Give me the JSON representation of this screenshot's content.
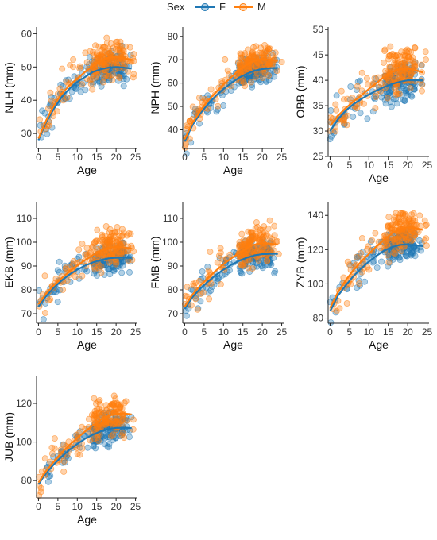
{
  "legend": {
    "title": "Sex",
    "items": [
      {
        "label": "F",
        "color": "#1f77b4"
      },
      {
        "label": "M",
        "color": "#ff7f0e"
      }
    ],
    "placement": "top-center"
  },
  "chart_data": [
    {
      "type": "scatter",
      "title": "",
      "xlabel": "Age",
      "ylabel": "NLH (mm)",
      "xlim": [
        -0.5,
        25.5
      ],
      "xticks": [
        0,
        5,
        10,
        15,
        20,
        25
      ],
      "ylim": [
        25.5,
        62
      ],
      "yticks": [
        30,
        40,
        50,
        60
      ],
      "grid": false,
      "series": [
        {
          "name": "F",
          "color": "#1f77b4",
          "trend": {
            "x": [
              0,
              2,
              4,
              6,
              8,
              10,
              12,
              14,
              16,
              18,
              20,
              22,
              24
            ],
            "y": [
              28,
              33.5,
              37.5,
              41,
              43.5,
              45.5,
              47,
              48.5,
              49.3,
              49.8,
              50,
              49.8,
              49.5
            ]
          },
          "scatter": {
            "x_range": [
              0,
              24
            ],
            "count": 170,
            "seed": 11,
            "noise": 2.4
          }
        },
        {
          "name": "M",
          "color": "#ff7f0e",
          "trend": {
            "x": [
              0,
              2,
              4,
              6,
              8,
              10,
              12,
              14,
              16,
              18,
              20,
              22,
              24
            ],
            "y": [
              28.5,
              34,
              38.5,
              42,
              44.5,
              46.5,
              48.5,
              50.3,
              51.8,
              52.8,
              53,
              52.6,
              52
            ]
          },
          "scatter": {
            "x_range": [
              0,
              25
            ],
            "count": 180,
            "seed": 12,
            "noise": 2.8
          }
        }
      ]
    },
    {
      "type": "scatter",
      "title": "",
      "xlabel": "Age",
      "ylabel": "NPH (mm)",
      "xlim": [
        -0.5,
        25.5
      ],
      "xticks": [
        0,
        5,
        10,
        15,
        20,
        25
      ],
      "ylim": [
        32,
        84
      ],
      "yticks": [
        40,
        50,
        60,
        70,
        80
      ],
      "grid": false,
      "series": [
        {
          "name": "F",
          "color": "#1f77b4",
          "trend": {
            "x": [
              0,
              2,
              4,
              6,
              8,
              10,
              12,
              14,
              16,
              18,
              20,
              22,
              24
            ],
            "y": [
              35,
              42,
              47,
              51,
              54.5,
              57.5,
              60,
              62.3,
              64,
              65.3,
              66,
              66.4,
              66.5
            ]
          },
          "scatter": {
            "x_range": [
              0,
              24
            ],
            "count": 170,
            "seed": 21,
            "noise": 3.2
          }
        },
        {
          "name": "M",
          "color": "#ff7f0e",
          "trend": {
            "x": [
              0,
              2,
              4,
              6,
              8,
              10,
              12,
              14,
              16,
              18,
              20,
              22,
              24
            ],
            "y": [
              36,
              43,
              48,
              52.5,
              56,
              59.5,
              62.5,
              65.5,
              68,
              69.6,
              70.2,
              70,
              69.5
            ]
          },
          "scatter": {
            "x_range": [
              0,
              25
            ],
            "count": 180,
            "seed": 22,
            "noise": 3.6
          }
        }
      ]
    },
    {
      "type": "scatter",
      "title": "",
      "xlabel": "Age",
      "ylabel": "OBB (mm)",
      "xlim": [
        -0.5,
        25.5
      ],
      "xticks": [
        0,
        5,
        10,
        15,
        20,
        25
      ],
      "ylim": [
        25,
        50.5
      ],
      "yticks": [
        25,
        30,
        35,
        40,
        45,
        50
      ],
      "grid": false,
      "series": [
        {
          "name": "F",
          "color": "#1f77b4",
          "trend": {
            "x": [
              0,
              2,
              4,
              6,
              8,
              10,
              12,
              14,
              16,
              18,
              20,
              22,
              24
            ],
            "y": [
              30,
              32.3,
              34,
              35.3,
              36.3,
              37.2,
              38,
              38.7,
              39.3,
              39.7,
              40,
              40,
              40
            ]
          },
          "scatter": {
            "x_range": [
              0,
              24
            ],
            "count": 170,
            "seed": 31,
            "noise": 1.9
          }
        },
        {
          "name": "M",
          "color": "#ff7f0e",
          "trend": {
            "x": [
              0,
              2,
              4,
              6,
              8,
              10,
              12,
              14,
              16,
              18,
              20,
              22,
              24
            ],
            "y": [
              31,
              33,
              34.5,
              35.8,
              37,
              38.3,
              39.5,
              40.7,
              41.7,
              42.2,
              42.3,
              42,
              41.5
            ]
          },
          "scatter": {
            "x_range": [
              0,
              25
            ],
            "count": 180,
            "seed": 32,
            "noise": 2.2
          }
        }
      ]
    },
    {
      "type": "scatter",
      "title": "",
      "xlabel": "Age",
      "ylabel": "EKB (mm)",
      "xlim": [
        -0.5,
        25.5
      ],
      "xticks": [
        0,
        5,
        10,
        15,
        20,
        25
      ],
      "ylim": [
        66,
        117
      ],
      "yticks": [
        70,
        80,
        90,
        100,
        110
      ],
      "grid": false,
      "series": [
        {
          "name": "F",
          "color": "#1f77b4",
          "trend": {
            "x": [
              0,
              2,
              4,
              6,
              8,
              10,
              12,
              14,
              16,
              18,
              20,
              22,
              24
            ],
            "y": [
              73,
              77.5,
              81,
              84,
              86.5,
              88.5,
              90.2,
              91.5,
              92.5,
              93.2,
              93.5,
              93.5,
              93.4
            ]
          },
          "scatter": {
            "x_range": [
              0,
              24
            ],
            "count": 170,
            "seed": 41,
            "noise": 3.2
          }
        },
        {
          "name": "M",
          "color": "#ff7f0e",
          "trend": {
            "x": [
              0,
              2,
              4,
              6,
              8,
              10,
              12,
              14,
              16,
              18,
              20,
              22,
              24
            ],
            "y": [
              74,
              78.5,
              82,
              85,
              87.8,
              90.2,
              92.5,
              94.5,
              96.3,
              97.6,
              98,
              97.8,
              97.3
            ]
          },
          "scatter": {
            "x_range": [
              0,
              25
            ],
            "count": 180,
            "seed": 42,
            "noise": 3.8
          }
        }
      ]
    },
    {
      "type": "scatter",
      "title": "",
      "xlabel": "Age",
      "ylabel": "FMB (mm)",
      "xlim": [
        -0.5,
        25.5
      ],
      "xticks": [
        0,
        5,
        10,
        15,
        20,
        25
      ],
      "ylim": [
        66,
        117
      ],
      "yticks": [
        70,
        80,
        90,
        100,
        110
      ],
      "grid": false,
      "series": [
        {
          "name": "F",
          "color": "#1f77b4",
          "trend": {
            "x": [
              0,
              2,
              4,
              6,
              8,
              10,
              12,
              14,
              16,
              18,
              20,
              22,
              24
            ],
            "y": [
              72,
              77,
              80.5,
              83.5,
              86.2,
              88.5,
              90.5,
              92.2,
              93.5,
              94.5,
              95,
              95.1,
              95.1
            ]
          },
          "scatter": {
            "x_range": [
              0,
              24
            ],
            "count": 170,
            "seed": 51,
            "noise": 3.2
          }
        },
        {
          "name": "M",
          "color": "#ff7f0e",
          "trend": {
            "x": [
              0,
              2,
              4,
              6,
              8,
              10,
              12,
              14,
              16,
              18,
              20,
              22,
              24
            ],
            "y": [
              73,
              78,
              81.8,
              85,
              88,
              90.8,
              93.2,
              95.5,
              97.5,
              99,
              99.6,
              99.4,
              99
            ]
          },
          "scatter": {
            "x_range": [
              0,
              25
            ],
            "count": 180,
            "seed": 52,
            "noise": 3.9
          }
        }
      ]
    },
    {
      "type": "scatter",
      "title": "",
      "xlabel": "Age",
      "ylabel": "ZYB (mm)",
      "xlim": [
        -0.5,
        25.5
      ],
      "xticks": [
        0,
        5,
        10,
        15,
        20,
        25
      ],
      "ylim": [
        77,
        148
      ],
      "yticks": [
        80,
        100,
        120,
        140
      ],
      "grid": false,
      "series": [
        {
          "name": "F",
          "color": "#1f77b4",
          "trend": {
            "x": [
              0,
              2,
              4,
              6,
              8,
              10,
              12,
              14,
              16,
              18,
              20,
              22,
              24
            ],
            "y": [
              84,
              93,
              99,
              104.5,
              109,
              113,
              116.5,
              119.5,
              121.5,
              122.8,
              123,
              122.5,
              122
            ]
          },
          "scatter": {
            "x_range": [
              0,
              24
            ],
            "count": 170,
            "seed": 61,
            "noise": 4.8
          }
        },
        {
          "name": "M",
          "color": "#ff7f0e",
          "trend": {
            "x": [
              0,
              2,
              4,
              6,
              8,
              10,
              12,
              14,
              16,
              18,
              20,
              22,
              24
            ],
            "y": [
              86,
              95,
              102,
              108,
              113,
              117.5,
              122,
              126,
              129.5,
              132,
              133,
              132.5,
              131.5
            ]
          },
          "scatter": {
            "x_range": [
              0,
              25
            ],
            "count": 180,
            "seed": 62,
            "noise": 5.5
          }
        }
      ]
    },
    {
      "type": "scatter",
      "title": "",
      "xlabel": "Age",
      "ylabel": "JUB (mm)",
      "xlim": [
        -0.5,
        25.5
      ],
      "xticks": [
        0,
        5,
        10,
        15,
        20,
        25
      ],
      "ylim": [
        71,
        134
      ],
      "yticks": [
        80,
        100,
        120
      ],
      "grid": false,
      "series": [
        {
          "name": "F",
          "color": "#1f77b4",
          "trend": {
            "x": [
              0,
              2,
              4,
              6,
              8,
              10,
              12,
              14,
              16,
              18,
              20,
              22,
              24
            ],
            "y": [
              78,
              84,
              88.5,
              92.5,
              96,
              99,
              101.7,
              103.8,
              105.5,
              106.7,
              107.3,
              107.4,
              107.2
            ]
          },
          "scatter": {
            "x_range": [
              0,
              24
            ],
            "count": 170,
            "seed": 71,
            "noise": 4.2
          }
        },
        {
          "name": "M",
          "color": "#ff7f0e",
          "trend": {
            "x": [
              0,
              2,
              4,
              6,
              8,
              10,
              12,
              14,
              16,
              18,
              20,
              22,
              24
            ],
            "y": [
              79,
              85,
              90,
              94.5,
              98.5,
              102,
              105.5,
              108.5,
              111.5,
              113.5,
              114.6,
              114.8,
              114.3
            ]
          },
          "scatter": {
            "x_range": [
              0,
              25
            ],
            "count": 180,
            "seed": 72,
            "noise": 5.0
          }
        }
      ]
    }
  ]
}
